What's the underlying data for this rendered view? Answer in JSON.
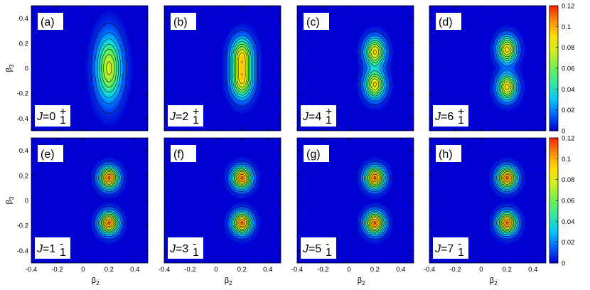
{
  "chart_data": {
    "type": "heatmap",
    "colormap": [
      "#0000d0",
      "#0060ff",
      "#00c8ff",
      "#30e8a0",
      "#70f050",
      "#c8f020",
      "#ffe000",
      "#ff9000",
      "#ff2000"
    ],
    "xlabel": "β2",
    "ylabel": "β3",
    "xlim": [
      -0.4,
      0.5
    ],
    "ylim": [
      -0.5,
      0.5
    ],
    "xticks": [
      "-0.4",
      "-0.2",
      "0",
      "0.2",
      "0.4"
    ],
    "yticks": [
      "0.4",
      "0.2",
      "0",
      "-0.2",
      "-0.4"
    ],
    "colorbar": {
      "range": [
        0,
        0.12
      ],
      "ticks": [
        "0.12",
        "0.1",
        "0.08",
        "0.06",
        "0.04",
        "0.02",
        "0"
      ]
    },
    "panels": [
      {
        "label": "(a)",
        "state": "J=0",
        "state_sub": "1",
        "parity": "+",
        "peaks": [
          {
            "beta2": 0.2,
            "beta3": 0.0,
            "height": 0.078
          }
        ],
        "sx": 0.065,
        "sy": 0.17
      },
      {
        "label": "(b)",
        "state": "J=2",
        "state_sub": "1",
        "parity": "+",
        "peaks": [
          {
            "beta2": 0.2,
            "beta3": 0.1,
            "height": 0.083
          },
          {
            "beta2": 0.2,
            "beta3": -0.1,
            "height": 0.083
          }
        ],
        "sx": 0.055,
        "sy": 0.095
      },
      {
        "label": "(c)",
        "state": "J=4",
        "state_sub": "1",
        "parity": "+",
        "peaks": [
          {
            "beta2": 0.2,
            "beta3": 0.13,
            "height": 0.088
          },
          {
            "beta2": 0.2,
            "beta3": -0.13,
            "height": 0.088
          }
        ],
        "sx": 0.052,
        "sy": 0.075
      },
      {
        "label": "(d)",
        "state": "J=6",
        "state_sub": "1",
        "parity": "+",
        "peaks": [
          {
            "beta2": 0.2,
            "beta3": 0.15,
            "height": 0.09
          },
          {
            "beta2": 0.2,
            "beta3": -0.15,
            "height": 0.09
          }
        ],
        "sx": 0.05,
        "sy": 0.07
      },
      {
        "label": "(e)",
        "state": "J=1",
        "state_sub": "1",
        "parity": "-",
        "peaks": [
          {
            "beta2": 0.2,
            "beta3": 0.18,
            "height": 0.11
          },
          {
            "beta2": 0.2,
            "beta3": -0.18,
            "height": 0.11
          }
        ],
        "sx": 0.05,
        "sy": 0.058
      },
      {
        "label": "(f)",
        "state": "J=3",
        "state_sub": "1",
        "parity": "-",
        "peaks": [
          {
            "beta2": 0.2,
            "beta3": 0.18,
            "height": 0.11
          },
          {
            "beta2": 0.2,
            "beta3": -0.18,
            "height": 0.11
          }
        ],
        "sx": 0.05,
        "sy": 0.058
      },
      {
        "label": "(g)",
        "state": "J=5",
        "state_sub": "1",
        "parity": "-",
        "peaks": [
          {
            "beta2": 0.2,
            "beta3": 0.18,
            "height": 0.11
          },
          {
            "beta2": 0.2,
            "beta3": -0.18,
            "height": 0.11
          }
        ],
        "sx": 0.05,
        "sy": 0.058
      },
      {
        "label": "(h)",
        "state": "J=7",
        "state_sub": "1",
        "parity": "-",
        "peaks": [
          {
            "beta2": 0.2,
            "beta3": 0.18,
            "height": 0.11
          },
          {
            "beta2": 0.2,
            "beta3": -0.18,
            "height": 0.11
          }
        ],
        "sx": 0.05,
        "sy": 0.058
      }
    ]
  }
}
